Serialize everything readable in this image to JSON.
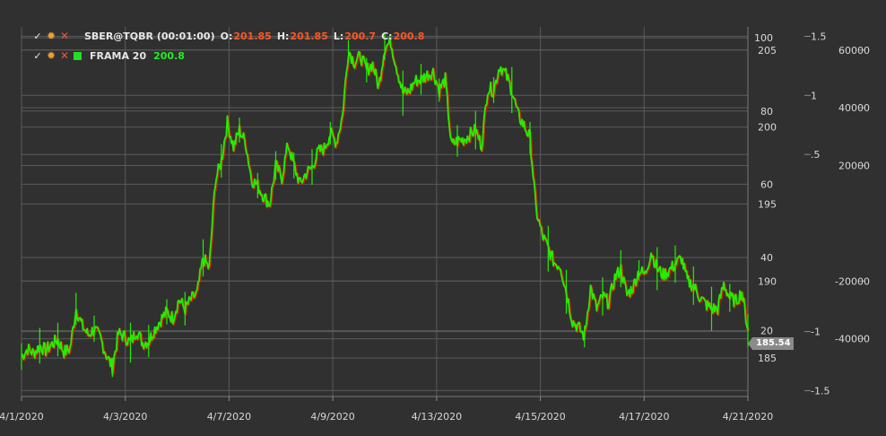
{
  "legend": {
    "series1": {
      "name": "SBER@TQBR (00:01:00)",
      "o_label": "O:",
      "o_value": "201.85",
      "h_label": "H:",
      "h_value": "201.85",
      "l_label": "L:",
      "l_value": "200.7",
      "c_label": "C:",
      "c_value": "200.8"
    },
    "series2": {
      "name": "FRAMA 20",
      "value": "200.8"
    }
  },
  "icons": {
    "check": "check-icon",
    "settings": "gear-icon",
    "remove": "close-icon",
    "color_swatch": "color-square-icon"
  },
  "colors": {
    "background": "#303030",
    "grid": "#5a5a5a",
    "price_line": "#22ee00",
    "candle_down": "#dd2200",
    "legend_value": "#ff5522",
    "badge": "#8a8a8a"
  },
  "price_badge": "185.54",
  "chart_data": {
    "type": "line",
    "title": "",
    "series": [
      {
        "name": "FRAMA 20",
        "values": [
          185.1,
          185.6,
          185.3,
          185.8,
          185.5,
          185.9,
          186.2,
          185.4,
          185.6,
          188.2,
          187.1,
          186.5,
          186.9,
          186.3,
          185.2,
          184.4,
          186.6,
          186.4,
          186.0,
          186.8,
          186.0,
          186.1,
          186.9,
          187.5,
          188.0,
          187.6,
          188.8,
          188.2,
          188.8,
          189.2,
          191.5,
          190.8,
          196.5,
          197.8,
          200.3,
          198.7,
          199.8,
          199.0,
          196.6,
          196.2,
          195.5,
          195.0,
          197.5,
          196.7,
          198.9,
          197.5,
          196.3,
          197.0,
          197.4,
          198.4,
          198.6,
          199.6,
          199.0,
          200.7,
          205.0,
          204.2,
          204.6,
          203.7,
          204.1,
          202.6,
          205.2,
          205.5,
          203.8,
          202.2,
          202.3,
          203.0,
          203.1,
          203.4,
          203.6,
          202.4,
          203.1,
          198.8,
          199.1,
          199.2,
          199.5,
          199.8,
          198.8,
          202.5,
          202.4,
          204.0,
          203.4,
          202.4,
          200.8,
          200.1,
          199.3,
          194.6,
          193.0,
          192.1,
          191.2,
          191.0,
          189.3,
          187.4,
          187.0,
          186.4,
          189.6,
          188.2,
          189.0,
          188.6,
          190.2,
          190.8,
          189.1,
          189.6,
          190.7,
          190.4,
          191.9,
          190.8,
          190.4,
          190.7,
          191.1,
          191.5,
          190.0,
          189.7,
          189.0,
          188.5,
          188.2,
          188.2,
          189.8,
          188.9,
          188.7,
          189.3,
          186.8
        ]
      }
    ],
    "x_tick_labels": [
      "4/1/2020",
      "4/3/2020",
      "4/7/2020",
      "4/9/2020",
      "4/13/2020",
      "4/15/2020",
      "4/17/2020",
      "4/21/2020"
    ],
    "axes": {
      "price": {
        "ticks": [
          "185",
          "190",
          "195",
          "200",
          "205"
        ],
        "range": [
          182.5,
          206.5
        ]
      },
      "percent": {
        "ticks": [
          "20",
          "40",
          "60",
          "80",
          "100"
        ],
        "range": [
          2,
          103
        ]
      },
      "oscillator": {
        "ticks": [
          "-1.5",
          "-1",
          ".5",
          "1",
          "1.5"
        ],
        "range": [
          -1.55,
          1.58
        ]
      },
      "volume": {
        "ticks": [
          "-40000",
          "-20000",
          "20000",
          "40000",
          "60000"
        ],
        "range": [
          -60000,
          68000
        ]
      }
    },
    "grid": true,
    "legend_position": "top-left"
  }
}
